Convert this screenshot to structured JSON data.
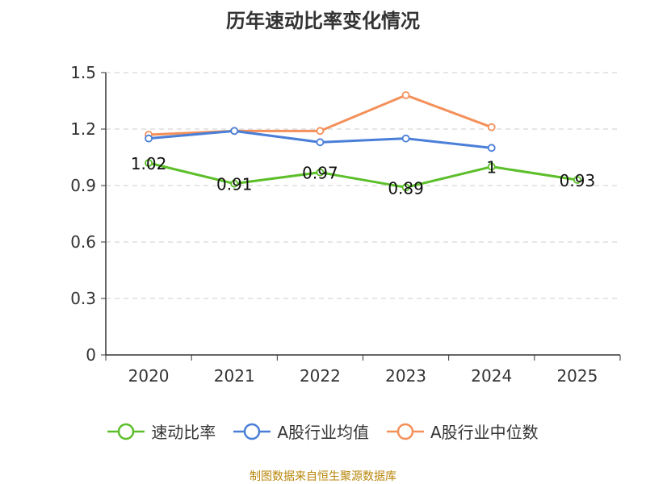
{
  "chart_data": {
    "type": "line",
    "title": "历年速动比率变化情况",
    "categories": [
      "2020",
      "2021",
      "2022",
      "2023",
      "2024",
      "2025"
    ],
    "series": [
      {
        "name": "速动比率",
        "color": "#5cbf2a",
        "values": [
          1.02,
          0.91,
          0.97,
          0.89,
          1.0,
          0.93
        ],
        "labels": [
          "1.02",
          "0.91",
          "0.97",
          "0.89",
          "1",
          "0.93"
        ]
      },
      {
        "name": "A股行业均值",
        "color": "#4a7fd8",
        "values": [
          1.15,
          1.19,
          1.13,
          1.15,
          1.1,
          null
        ]
      },
      {
        "name": "A股行业中位数",
        "color": "#f4905a",
        "values": [
          1.17,
          1.19,
          1.19,
          1.38,
          1.21,
          null
        ]
      }
    ],
    "yticks": [
      "0",
      "0.3",
      "0.6",
      "0.9",
      "1.2",
      "1.5"
    ],
    "ylim": [
      0,
      1.5
    ],
    "grid": true,
    "legend": "bottom",
    "xlabel": "",
    "ylabel": ""
  },
  "source": "制图数据来自恒生聚源数据库"
}
